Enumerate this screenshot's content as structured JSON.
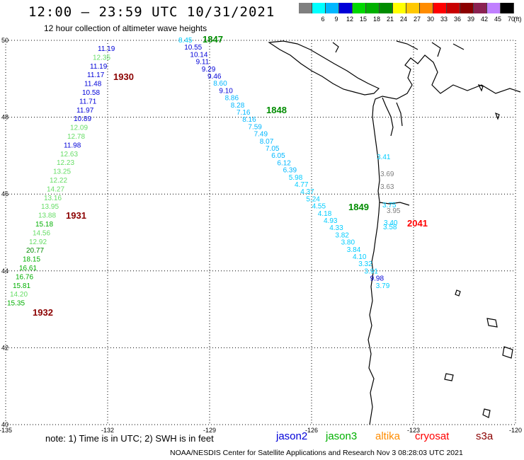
{
  "title": "12:00 – 23:59 UTC 10/31/2021",
  "subtitle": "12 hour collection of altimeter wave heights",
  "legend": {
    "unit": "(ft)",
    "bins": [
      {
        "label": "3",
        "color": "#7f7f7f"
      },
      {
        "label": "6",
        "color": "#00ffff"
      },
      {
        "label": "9",
        "color": "#00b7ff"
      },
      {
        "label": "12",
        "color": "#0000d8"
      },
      {
        "label": "15",
        "color": "#00d800"
      },
      {
        "label": "18",
        "color": "#00b000"
      },
      {
        "label": "21",
        "color": "#008c00"
      },
      {
        "label": "24",
        "color": "#ffff00"
      },
      {
        "label": "27",
        "color": "#ffc800"
      },
      {
        "label": "30",
        "color": "#ff8c00"
      },
      {
        "label": "33",
        "color": "#ff0000"
      },
      {
        "label": "36",
        "color": "#c80000"
      },
      {
        "label": "39",
        "color": "#8b0000"
      },
      {
        "label": "42",
        "color": "#8b2252"
      },
      {
        "label": "45",
        "color": "#c080ff"
      },
      {
        "label": "70",
        "color": "#000000"
      }
    ]
  },
  "axes": {
    "lon_labels": [
      "-135",
      "-132",
      "-129",
      "-126",
      "-123",
      "-120"
    ],
    "lat_labels": [
      "50",
      "48",
      "46",
      "44",
      "42",
      "40"
    ]
  },
  "tracks": [
    {
      "name": "pass-west",
      "points": [
        {
          "value": "11.19",
          "color": "#0000d8"
        },
        {
          "value": "12.35",
          "color": "#66dd66"
        },
        {
          "value": "11.19",
          "color": "#0000d8"
        },
        {
          "value": "11.17",
          "color": "#0000d8"
        },
        {
          "value": "11.48",
          "color": "#0000d8"
        },
        {
          "value": "10.58",
          "color": "#0000d8"
        },
        {
          "value": "11.71",
          "color": "#0000d8"
        },
        {
          "value": "11.97",
          "color": "#0000d8"
        },
        {
          "value": "10.89",
          "color": "#0000d8"
        },
        {
          "value": "12.09",
          "color": "#66dd66"
        },
        {
          "value": "12.78",
          "color": "#66dd66"
        },
        {
          "value": "11.98",
          "color": "#0000d8"
        },
        {
          "value": "12.63",
          "color": "#66dd66"
        },
        {
          "value": "12.23",
          "color": "#66dd66"
        },
        {
          "value": "13.25",
          "color": "#66dd66"
        },
        {
          "value": "12.22",
          "color": "#66dd66"
        },
        {
          "value": "14.27",
          "color": "#66dd66"
        },
        {
          "value": "13.16",
          "color": "#66dd66"
        },
        {
          "value": "13.95",
          "color": "#66dd66"
        },
        {
          "value": "13.88",
          "color": "#66dd66"
        },
        {
          "value": "15.18",
          "color": "#00b000"
        },
        {
          "value": "14.56",
          "color": "#66dd66"
        },
        {
          "value": "12.92",
          "color": "#66dd66"
        },
        {
          "value": "20.77",
          "color": "#008c00"
        },
        {
          "value": "18.15",
          "color": "#00b000"
        },
        {
          "value": "16.61",
          "color": "#00b000"
        },
        {
          "value": "16.76",
          "color": "#00b000"
        },
        {
          "value": "15.81",
          "color": "#00b000"
        },
        {
          "value": "14.20",
          "color": "#66dd66"
        },
        {
          "value": "15.35",
          "color": "#00b000"
        }
      ],
      "time_labels": [
        {
          "text": "1930",
          "color": "#8b0000"
        },
        {
          "text": "1931",
          "color": "#8b0000"
        },
        {
          "text": "1932",
          "color": "#8b0000"
        }
      ]
    },
    {
      "name": "pass-central",
      "points": [
        {
          "value": "8.45",
          "color": "#00ccff"
        },
        {
          "value": "10.55",
          "color": "#0000d8"
        },
        {
          "value": "10.14",
          "color": "#0000d8"
        },
        {
          "value": "9.11",
          "color": "#0000d8"
        },
        {
          "value": "9.29",
          "color": "#0000d8"
        },
        {
          "value": "9.46",
          "color": "#0000d8"
        },
        {
          "value": "8.60",
          "color": "#00b7ff"
        },
        {
          "value": "9.10",
          "color": "#0000d8"
        },
        {
          "value": "8.86",
          "color": "#00b7ff"
        },
        {
          "value": "8.28",
          "color": "#00b7ff"
        },
        {
          "value": "7.16",
          "color": "#00b7ff"
        },
        {
          "value": "8.16",
          "color": "#00b7ff"
        },
        {
          "value": "7.59",
          "color": "#00b7ff"
        },
        {
          "value": "7.49",
          "color": "#00b7ff"
        },
        {
          "value": "8.07",
          "color": "#00b7ff"
        },
        {
          "value": "7.05",
          "color": "#00b7ff"
        },
        {
          "value": "6.05",
          "color": "#00b7ff"
        },
        {
          "value": "6.12",
          "color": "#00b7ff"
        },
        {
          "value": "6.39",
          "color": "#00b7ff"
        },
        {
          "value": "5.98",
          "color": "#00ccff"
        },
        {
          "value": "4.77",
          "color": "#00ccff"
        },
        {
          "value": "4.37",
          "color": "#00ccff"
        },
        {
          "value": "5.24",
          "color": "#00ccff"
        },
        {
          "value": "4.55",
          "color": "#00ccff"
        },
        {
          "value": "4.18",
          "color": "#00ccff"
        },
        {
          "value": "4.93",
          "color": "#00ccff"
        },
        {
          "value": "4.33",
          "color": "#00ccff"
        },
        {
          "value": "3.82",
          "color": "#00ccff"
        },
        {
          "value": "3.80",
          "color": "#00ccff"
        },
        {
          "value": "3.84",
          "color": "#00ccff"
        },
        {
          "value": "4.10",
          "color": "#00ccff"
        },
        {
          "value": "3.32",
          "color": "#00ccff"
        },
        {
          "value": "3.91",
          "color": "#00ccff"
        },
        {
          "value": "9.98",
          "color": "#0000d8"
        },
        {
          "value": "3.79",
          "color": "#00ccff"
        }
      ],
      "time_labels": [
        {
          "text": "1847",
          "color": "#008c00"
        },
        {
          "text": "1848",
          "color": "#008c00"
        },
        {
          "text": "1849",
          "color": "#008c00"
        }
      ]
    },
    {
      "name": "pass-coastal",
      "points": [
        {
          "value": "3.41",
          "color": "#00ccff"
        },
        {
          "value": "3.69",
          "color": "#7f7f7f"
        },
        {
          "value": "3.63",
          "color": "#7f7f7f"
        },
        {
          "value": "3.75",
          "color": "#00ccff"
        },
        {
          "value": "3.95",
          "color": "#7f7f7f"
        },
        {
          "value": "3.40",
          "color": "#00ccff"
        },
        {
          "value": "3.58",
          "color": "#00ccff"
        }
      ],
      "time_labels": [
        {
          "text": "2041",
          "color": "#ff0000"
        }
      ]
    }
  ],
  "footer": {
    "note": "note: 1) Time is in UTC; 2) SWH is in feet",
    "satellites": [
      {
        "name": "jason2",
        "color": "#0000d8"
      },
      {
        "name": "jason3",
        "color": "#00b000"
      },
      {
        "name": "altika",
        "color": "#ff8c00"
      },
      {
        "name": "cryosat",
        "color": "#ff0000"
      },
      {
        "name": "s3a",
        "color": "#8b0000"
      }
    ],
    "credit": "NOAA/NESDIS Center for Satellite Applications and Research   Nov  3 08:28:03 UTC 2021"
  }
}
